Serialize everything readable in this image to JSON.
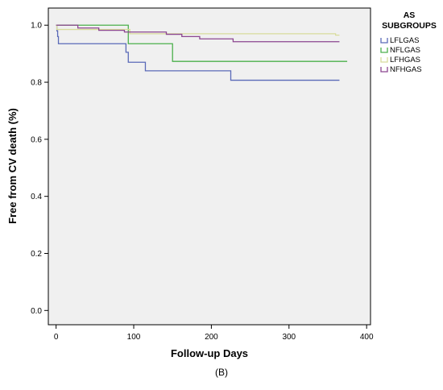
{
  "chart_data": {
    "type": "line",
    "step": true,
    "xlabel": "Follow-up Days",
    "ylabel": "Free from CV death (%)",
    "caption": "(B)",
    "xlim": [
      -10,
      405
    ],
    "ylim": [
      -0.05,
      1.06
    ],
    "x_ticks": [
      0,
      100,
      200,
      300,
      400
    ],
    "x_tick_labels": [
      "0",
      "100",
      "200",
      "300",
      "400"
    ],
    "y_ticks": [
      0.0,
      0.2,
      0.4,
      0.6,
      0.8,
      1.0
    ],
    "y_tick_labels": [
      "0.0",
      "0.2",
      "0.4",
      "0.6",
      "0.8",
      "1.0"
    ],
    "grid": false,
    "plot_background": "#f0f0f0",
    "legend": {
      "title_lines": [
        "AS",
        "SUBGROUPS"
      ],
      "placement": "right"
    },
    "series": [
      {
        "name": "LFLGAS",
        "color": "#5a6ab8",
        "x": [
          0,
          1,
          2,
          3,
          90,
          93,
          115,
          225,
          365
        ],
        "y": [
          1.0,
          0.98,
          0.96,
          0.935,
          0.905,
          0.87,
          0.84,
          0.807,
          0.807
        ]
      },
      {
        "name": "NFLGAS",
        "color": "#4cb04c",
        "x": [
          0,
          93,
          150,
          375
        ],
        "y": [
          1.0,
          0.935,
          0.873,
          0.873
        ]
      },
      {
        "name": "LFHGAS",
        "color": "#d8dc9c",
        "x": [
          0,
          1,
          95,
          360,
          365
        ],
        "y": [
          1.0,
          0.985,
          0.97,
          0.965,
          0.965
        ]
      },
      {
        "name": "NFHGAS",
        "color": "#8c4690",
        "x": [
          0,
          28,
          55,
          88,
          142,
          162,
          185,
          228,
          365
        ],
        "y": [
          1.0,
          0.99,
          0.982,
          0.976,
          0.968,
          0.96,
          0.952,
          0.942,
          0.942
        ]
      }
    ]
  }
}
